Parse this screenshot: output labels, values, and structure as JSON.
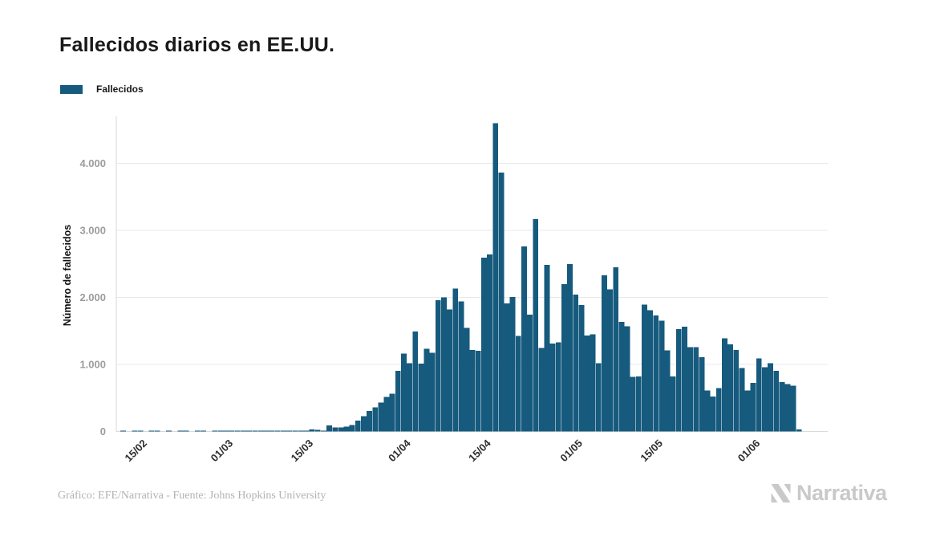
{
  "header": {
    "title": "Fallecidos diarios en EE.UU."
  },
  "legend": {
    "label": "Fallecidos",
    "swatch_color": "#165a7d"
  },
  "footer": {
    "credit": "Gráfico: EFE/Narrativa - Fuente: Johns Hopkins University",
    "brand": "Narrativa",
    "brand_color": "#c9c9c9",
    "brand_mark_icon": "narrativa-n-logo"
  },
  "chart_data": {
    "type": "bar",
    "title": "Fallecidos diarios en EE.UU.",
    "ylabel": "Número de fallecidos",
    "xlabel": "",
    "grid": true,
    "legend_position": "top-left",
    "bar_color": "#165a7d",
    "grid_color": "#e8e8e8",
    "axis_line_color": "#d9d9d9",
    "y_tick_color": "#9c9c9c",
    "x_tick_color": "#2d2d2d",
    "ylim": [
      0,
      4700
    ],
    "y_ticks": [
      0,
      1000,
      2000,
      3000,
      4000
    ],
    "y_tick_labels": [
      "0",
      "1.000",
      "2.000",
      "3.000",
      "4.000"
    ],
    "x_tick_labels": [
      "15/02",
      "01/03",
      "15/03",
      "01/04",
      "15/04",
      "01/05",
      "15/05",
      "01/06"
    ],
    "x_tick_value_indices": [
      3,
      18,
      32,
      49,
      63,
      79,
      93,
      110
    ],
    "series": [
      {
        "name": "Fallecidos",
        "values": [
          1,
          0,
          1,
          1,
          0,
          1,
          1,
          0,
          1,
          0,
          1,
          1,
          0,
          1,
          1,
          0,
          1,
          1,
          6,
          4,
          7,
          3,
          11,
          3,
          4,
          4,
          4,
          5,
          8,
          3,
          14,
          7,
          11,
          28,
          26,
          10,
          92,
          62,
          58,
          72,
          95,
          160,
          225,
          305,
          360,
          432,
          516,
          560,
          907,
          1162,
          1020,
          1494,
          1012,
          1231,
          1174,
          1960,
          2000,
          1822,
          2134,
          1943,
          1547,
          1215,
          1202,
          2591,
          2640,
          4600,
          3860,
          1912,
          2008,
          1428,
          2760,
          1740,
          3168,
          1248,
          2488,
          1312,
          1328,
          2200,
          2500,
          2040,
          1888,
          1432,
          1448,
          1020,
          2328,
          2120,
          2448,
          1632,
          1568,
          816,
          820,
          1890,
          1810,
          1730,
          1650,
          1210,
          820,
          1530,
          1565,
          1258,
          1258,
          1108,
          613,
          524,
          645,
          1391,
          1298,
          1218,
          948,
          613,
          726,
          1089,
          960,
          1016,
          907,
          734,
          706,
          680,
          32
        ]
      }
    ]
  }
}
